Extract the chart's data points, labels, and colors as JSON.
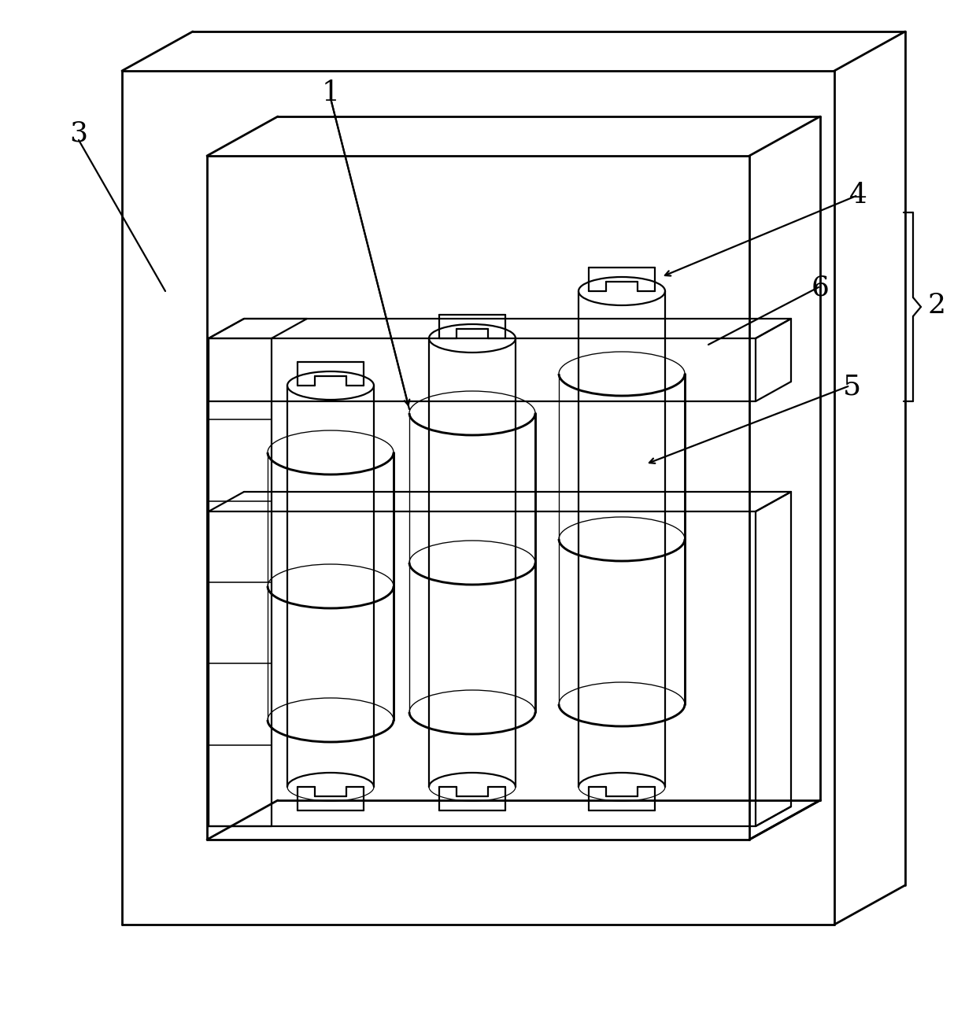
{
  "background_color": "#ffffff",
  "line_color": "#000000",
  "lw": 1.6,
  "lw_thick": 2.0,
  "label_fontsize": 26,
  "fig_width": 12.4,
  "fig_height": 12.95,
  "dpi": 100
}
